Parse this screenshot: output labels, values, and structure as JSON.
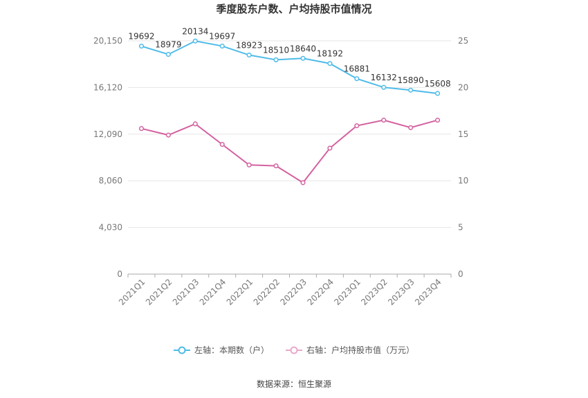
{
  "chart_data": {
    "type": "line",
    "title": "季度股东户数、户均持股市值情况",
    "categories": [
      "2021Q1",
      "2021Q2",
      "2021Q3",
      "2021Q4",
      "2022Q1",
      "2022Q2",
      "2022Q3",
      "2022Q4",
      "2023Q1",
      "2023Q2",
      "2023Q3",
      "2023Q4"
    ],
    "left_axis": {
      "ticks": [
        "0",
        "4,030",
        "8,060",
        "12,090",
        "16,120",
        "20,150"
      ],
      "min": 0,
      "max": 20150
    },
    "right_axis": {
      "ticks": [
        "0",
        "5",
        "10",
        "15",
        "20",
        "25"
      ],
      "min": 0,
      "max": 25
    },
    "series": [
      {
        "name": "左轴：本期数（户）",
        "axis": "left",
        "color": "#4dbbe8",
        "values": [
          19692,
          18979,
          20134,
          19697,
          18923,
          18510,
          18640,
          18192,
          16881,
          16132,
          15890,
          15608
        ],
        "labels": [
          "19692",
          "18979",
          "20134",
          "19697",
          "18923",
          "18510",
          "18640",
          "18192",
          "16881",
          "16132",
          "15890",
          "15608"
        ]
      },
      {
        "name": "右轴：户均持股市值（万元）",
        "axis": "right",
        "color": "#d4609f",
        "values": [
          15.6,
          14.9,
          16.1,
          13.9,
          11.7,
          11.6,
          9.8,
          13.5,
          15.9,
          16.5,
          15.7,
          16.5
        ]
      }
    ],
    "grid": true,
    "legend_position": "bottom"
  },
  "source_text": "数据来源：恒生聚源"
}
